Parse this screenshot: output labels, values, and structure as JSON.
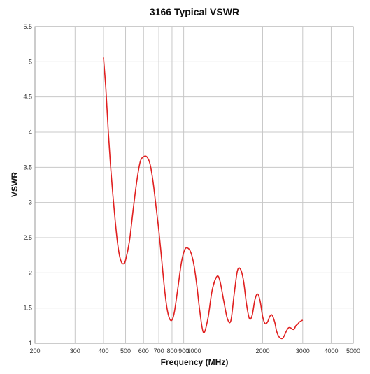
{
  "chart_data": {
    "type": "line",
    "title": "3166 Typical VSWR",
    "xlabel": "Frequency (MHz)",
    "ylabel": "VSWR",
    "xscale": "log",
    "xlim": [
      200,
      5000
    ],
    "ylim": [
      1,
      5.5
    ],
    "grid": true,
    "x_ticks": [
      200,
      300,
      400,
      500,
      600,
      700,
      800,
      900,
      1000,
      2000,
      3000,
      4000,
      5000
    ],
    "x_tick_labels": [
      "200",
      "300",
      "400",
      "500",
      "600",
      "700",
      "800",
      "900",
      "1000",
      "2000",
      "3000",
      "4000",
      "5000"
    ],
    "y_ticks": [
      1,
      1.5,
      2,
      2.5,
      3,
      3.5,
      4,
      4.5,
      5,
      5.5
    ],
    "y_tick_labels": [
      "1",
      "1.5",
      "2",
      "2.5",
      "3",
      "3.5",
      "4",
      "4.5",
      "5",
      "5.5"
    ],
    "line_color": "#e02020",
    "series": [
      {
        "x": [
          400,
          410,
          420,
          430,
          440,
          450,
          460,
          470,
          480,
          490,
          500,
          520,
          540,
          560,
          580,
          600,
          620,
          640,
          660,
          680,
          700,
          720,
          740,
          760,
          780,
          800,
          820,
          850,
          880,
          910,
          940,
          970,
          1000,
          1030,
          1060,
          1100,
          1150,
          1200,
          1260,
          1300,
          1350,
          1400,
          1450,
          1500,
          1550,
          1600,
          1650,
          1700,
          1750,
          1800,
          1850,
          1900,
          1950,
          2000,
          2050,
          2100,
          2150,
          2200,
          2260,
          2300,
          2350,
          2400,
          2450,
          2500,
          2550,
          2600,
          2650,
          2700,
          2750,
          2800,
          2850,
          2900,
          3000
        ],
        "y": [
          5.06,
          4.6,
          4.0,
          3.5,
          3.1,
          2.75,
          2.45,
          2.25,
          2.15,
          2.13,
          2.18,
          2.45,
          2.9,
          3.3,
          3.58,
          3.65,
          3.65,
          3.55,
          3.3,
          2.95,
          2.6,
          2.2,
          1.8,
          1.5,
          1.35,
          1.33,
          1.45,
          1.8,
          2.15,
          2.33,
          2.35,
          2.28,
          2.1,
          1.8,
          1.45,
          1.15,
          1.35,
          1.75,
          1.95,
          1.88,
          1.6,
          1.35,
          1.32,
          1.7,
          2.03,
          2.05,
          1.88,
          1.55,
          1.35,
          1.4,
          1.62,
          1.7,
          1.6,
          1.38,
          1.28,
          1.3,
          1.38,
          1.4,
          1.3,
          1.18,
          1.1,
          1.07,
          1.07,
          1.12,
          1.18,
          1.22,
          1.22,
          1.2,
          1.2,
          1.25,
          1.27,
          1.3,
          1.33
        ]
      }
    ]
  }
}
